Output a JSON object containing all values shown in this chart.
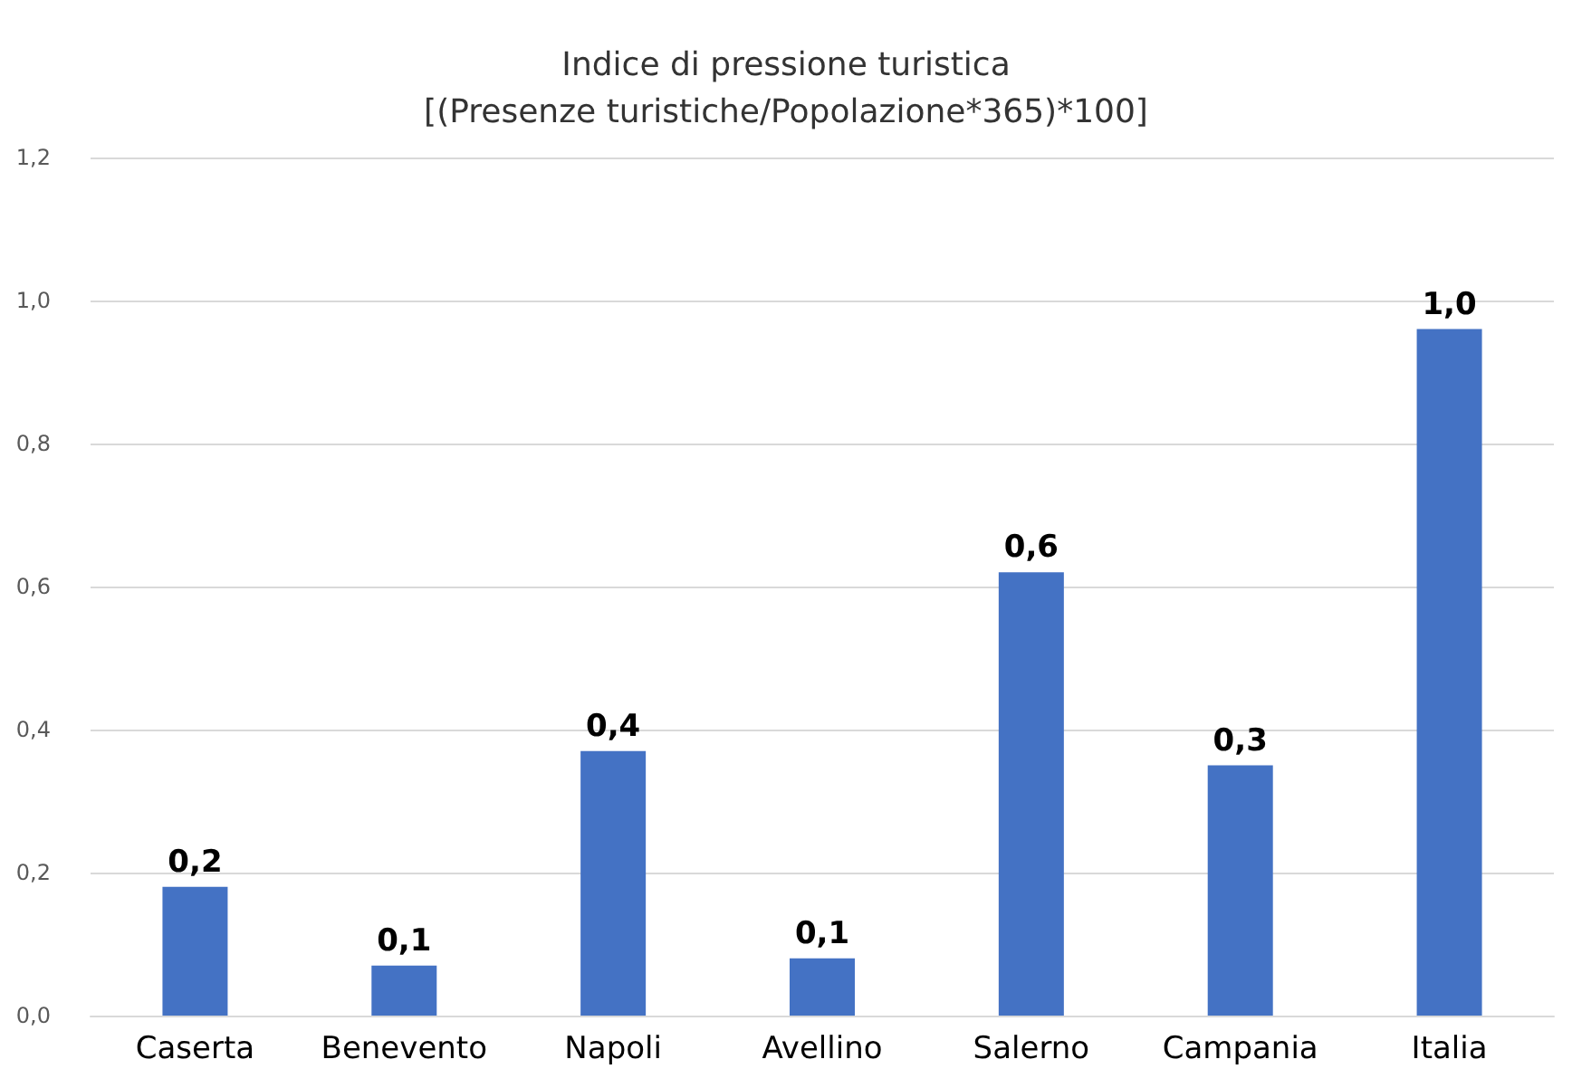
{
  "chart_data": {
    "type": "bar",
    "title": "Indice di pressione turistica",
    "subtitle": "[(Presenze turistiche/Popolazione*365)*100]",
    "categories": [
      "Caserta",
      "Benevento",
      "Napoli",
      "Avellino",
      "Salerno",
      "Campania",
      "Italia"
    ],
    "values": [
      0.18,
      0.07,
      0.37,
      0.08,
      0.62,
      0.35,
      0.96
    ],
    "value_labels": [
      "0,2",
      "0,1",
      "0,4",
      "0,1",
      "0,6",
      "0,3",
      "1,0"
    ],
    "color": "#4472c4",
    "ylim": [
      0,
      1.2
    ],
    "yticks": [
      {
        "value": 0,
        "label": "0,0"
      },
      {
        "value": 0.2,
        "label": "0,2"
      },
      {
        "value": 0.4,
        "label": "0,4"
      },
      {
        "value": 0.6,
        "label": "0,6"
      },
      {
        "value": 0.8,
        "label": "0,8"
      },
      {
        "value": 1,
        "label": "1,0"
      },
      {
        "value": 1.2,
        "label": "1,2"
      }
    ],
    "grid": "y"
  }
}
